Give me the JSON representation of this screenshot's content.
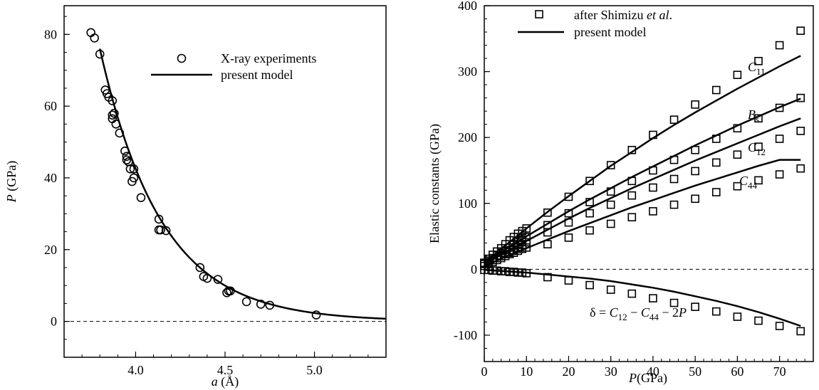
{
  "chart_data": [
    {
      "type": "scatter",
      "xlabel_var": "a",
      "xlabel_unit": " (Å)",
      "ylabel_var": "P",
      "ylabel_unit": " (GPa)",
      "xlim": [
        3.6,
        5.4
      ],
      "ylim": [
        -10,
        88
      ],
      "xticks": [
        "4.0",
        "4.5",
        "5.0"
      ],
      "xtick_values": [
        4.0,
        4.5,
        5.0
      ],
      "yticks": [
        "0",
        "20",
        "40",
        "60",
        "80"
      ],
      "ytick_values": [
        0,
        20,
        40,
        60,
        80
      ],
      "zero_line": "dashed",
      "legend": {
        "position": "top-right",
        "markers_label": "X-ray experiments",
        "line_label": "present model"
      },
      "series": [
        {
          "name": "X-ray experiments",
          "kind": "markers",
          "marker": "circle",
          "points": [
            [
              3.75,
              80.5
            ],
            [
              3.77,
              79.0
            ],
            [
              3.8,
              74.5
            ],
            [
              3.83,
              64.5
            ],
            [
              3.84,
              63.5
            ],
            [
              3.85,
              62.5
            ],
            [
              3.87,
              61.5
            ],
            [
              3.87,
              57.5
            ],
            [
              3.87,
              56.5
            ],
            [
              3.88,
              58.0
            ],
            [
              3.89,
              55.0
            ],
            [
              3.91,
              52.5
            ],
            [
              3.94,
              47.5
            ],
            [
              3.95,
              46.0
            ],
            [
              3.95,
              45.0
            ],
            [
              3.96,
              44.5
            ],
            [
              3.97,
              42.5
            ],
            [
              3.99,
              42.5
            ],
            [
              3.99,
              40.0
            ],
            [
              3.98,
              39.0
            ],
            [
              4.03,
              34.5
            ],
            [
              4.13,
              28.5
            ],
            [
              4.13,
              25.5
            ],
            [
              4.14,
              25.5
            ],
            [
              4.17,
              25.3
            ],
            [
              4.36,
              15.0
            ],
            [
              4.38,
              12.5
            ],
            [
              4.4,
              12.0
            ],
            [
              4.46,
              11.7
            ],
            [
              4.51,
              8.0
            ],
            [
              4.52,
              8.5
            ],
            [
              4.53,
              8.5
            ],
            [
              4.62,
              5.5
            ],
            [
              4.7,
              4.8
            ],
            [
              4.75,
              4.5
            ],
            [
              5.01,
              1.8
            ]
          ]
        },
        {
          "name": "present model",
          "kind": "line",
          "curve": {
            "form": "P = A*exp(-k*(a - 3.8))",
            "A": 76.0,
            "k": 2.9,
            "x_range": [
              3.8,
              5.4
            ]
          }
        }
      ]
    },
    {
      "type": "line",
      "xlabel_var": "P",
      "xlabel_unit": "(GPa)",
      "ylabel": "Elastic constants (GPa)",
      "xlim": [
        0,
        78
      ],
      "ylim": [
        -140,
        400
      ],
      "xticks": [
        "0",
        "10",
        "20",
        "30",
        "40",
        "50",
        "60",
        "70"
      ],
      "xtick_values": [
        0,
        10,
        20,
        30,
        40,
        50,
        60,
        70
      ],
      "yticks": [
        "-100",
        "0",
        "100",
        "200",
        "300",
        "400"
      ],
      "ytick_values": [
        -100,
        0,
        100,
        200,
        300,
        400
      ],
      "zero_line": "dashed",
      "legend": {
        "position": "top-left",
        "markers_label_prefix": "after Shimizu ",
        "markers_label_italic": "et al",
        "markers_label_suffix": ".",
        "line_label": "present model"
      },
      "x_points": [
        0,
        1,
        2,
        3,
        4,
        5,
        6,
        7,
        8,
        9,
        10,
        15,
        20,
        25,
        30,
        35,
        40,
        45,
        50,
        55,
        60,
        65,
        70,
        75
      ],
      "curve_x": [
        0,
        5,
        10,
        15,
        20,
        25,
        30,
        35,
        40,
        45,
        50,
        55,
        60,
        65,
        70,
        75
      ],
      "series": [
        {
          "name": "C11",
          "label_main": "C",
          "label_sub": "11",
          "markers": [
            10,
            16,
            22,
            27,
            32,
            38,
            44,
            49,
            54,
            58,
            62,
            86,
            110,
            134,
            158,
            181,
            204,
            227,
            250,
            272,
            295,
            316,
            340,
            362
          ],
          "curve": [
            10,
            36,
            62,
            87,
            111,
            134,
            157,
            178,
            199,
            219,
            238,
            256,
            274,
            291,
            308,
            324
          ]
        },
        {
          "name": "Bs",
          "label_main": "B",
          "label_sub": "s",
          "markers": [
            9,
            13,
            17,
            21,
            25,
            29,
            33,
            37,
            41,
            45,
            49,
            67,
            85,
            102,
            118,
            134,
            150,
            166,
            181,
            198,
            214,
            229,
            245,
            260
          ],
          "curve": [
            9,
            30,
            50,
            69,
            88,
            106,
            123,
            140,
            156,
            172,
            188,
            203,
            218,
            232,
            246,
            259
          ]
        },
        {
          "name": "C12",
          "label_main": "C",
          "label_sub": "12",
          "markers": [
            8,
            11,
            14,
            17,
            20,
            23,
            26,
            29,
            33,
            37,
            41,
            56,
            71,
            85,
            98,
            112,
            124,
            137,
            149,
            162,
            174,
            186,
            198,
            210
          ],
          "curve": [
            8,
            26,
            43,
            60,
            77,
            93,
            108,
            123,
            137,
            151,
            165,
            178,
            191,
            204,
            217,
            229
          ]
        },
        {
          "name": "C44",
          "label_main": "C",
          "label_sub": "44",
          "markers": [
            5,
            8,
            11,
            14,
            17,
            20,
            23,
            25,
            28,
            31,
            33,
            38,
            48,
            59,
            69,
            79,
            88,
            98,
            107,
            117,
            126,
            135,
            144,
            153
          ],
          "curve": [
            5,
            19,
            32,
            45,
            58,
            70,
            82,
            94,
            105,
            116,
            127,
            137,
            147,
            157,
            166,
            166
          ]
        },
        {
          "name": "delta",
          "label_text": "δ = C12 − C44 − 2P",
          "markers": [
            -1,
            -1,
            -2,
            -2,
            -3,
            -3,
            -4,
            -4,
            -5,
            -5,
            -6,
            -12,
            -17,
            -24,
            -31,
            -37,
            -44,
            -51,
            -57,
            -64,
            -72,
            -78,
            -86,
            -94
          ],
          "curve": [
            -1,
            -3,
            -5,
            -8,
            -11,
            -14,
            -18,
            -23,
            -28,
            -34,
            -41,
            -48,
            -56,
            -65,
            -75,
            -86
          ]
        }
      ]
    }
  ]
}
